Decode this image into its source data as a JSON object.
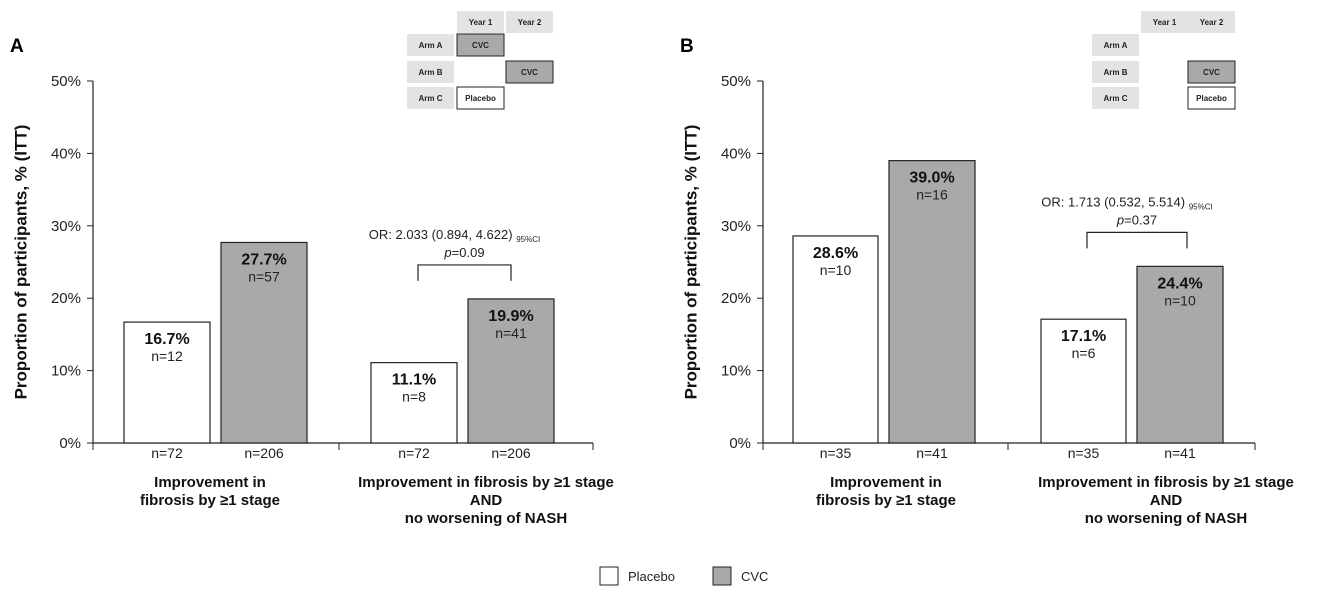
{
  "legend": [
    {
      "label": "Placebo",
      "color": "#ffffff"
    },
    {
      "label": "CVC",
      "color": "#a9a9a9"
    }
  ],
  "colors": {
    "placebo": "#ffffff",
    "cvc": "#a9a9a9",
    "axis": "#222222"
  },
  "chart_data": [
    {
      "panel_label": "A",
      "type": "bar",
      "ylabel": "Proportion of participants, % (ITT)",
      "ylim": [
        0,
        50
      ],
      "yticks": [
        "0%",
        "10%",
        "20%",
        "30%",
        "40%",
        "50%"
      ],
      "categories": [
        {
          "lines": [
            "Improvement in",
            "fibrosis by ≥1 stage"
          ]
        },
        {
          "lines": [
            "Improvement in fibrosis by ≥1 stage",
            "AND",
            "no worsening of NASH"
          ]
        }
      ],
      "series": [
        {
          "name": "Placebo",
          "values": [
            16.7,
            11.1
          ],
          "labels": [
            "16.7%",
            "11.1%"
          ],
          "n_responders": [
            "n=12",
            "n=8"
          ],
          "n_total": [
            "n=72",
            "n=72"
          ]
        },
        {
          "name": "CVC",
          "values": [
            27.7,
            19.9
          ],
          "labels": [
            "27.7%",
            "19.9%"
          ],
          "n_responders": [
            "n=57",
            "n=41"
          ],
          "n_total": [
            "n=206",
            "n=206"
          ]
        }
      ],
      "annotation": {
        "category_index": 1,
        "or_text": "OR: 2.033 (0.894, 4.622)",
        "ci_text": "95%CI",
        "p_prefix": "p",
        "p_value": "=0.09"
      },
      "design_table": {
        "headers": [
          "Year 1",
          "Year 2"
        ],
        "rows": [
          {
            "arm": "Arm A",
            "cells": [
              "CVC",
              ""
            ]
          },
          {
            "arm": "Arm B",
            "cells": [
              "",
              "CVC"
            ]
          },
          {
            "arm": "Arm C",
            "cells": [
              "Placebo",
              ""
            ]
          }
        ]
      }
    },
    {
      "panel_label": "B",
      "type": "bar",
      "ylabel": "Proportion of participants, % (ITT)",
      "ylim": [
        0,
        50
      ],
      "yticks": [
        "0%",
        "10%",
        "20%",
        "30%",
        "40%",
        "50%"
      ],
      "categories": [
        {
          "lines": [
            "Improvement in",
            "fibrosis by ≥1 stage"
          ]
        },
        {
          "lines": [
            "Improvement in fibrosis by ≥1 stage",
            "AND",
            "no worsening of NASH"
          ]
        }
      ],
      "series": [
        {
          "name": "Placebo",
          "values": [
            28.6,
            17.1
          ],
          "labels": [
            "28.6%",
            "17.1%"
          ],
          "n_responders": [
            "n=10",
            "n=6"
          ],
          "n_total": [
            "n=35",
            "n=35"
          ]
        },
        {
          "name": "CVC",
          "values": [
            39.0,
            24.4
          ],
          "labels": [
            "39.0%",
            "24.4%"
          ],
          "n_responders": [
            "n=16",
            "n=10"
          ],
          "n_total": [
            "n=41",
            "n=41"
          ]
        }
      ],
      "annotation": {
        "category_index": 1,
        "or_text": "OR: 1.713 (0.532, 5.514)",
        "ci_text": "95%CI",
        "p_prefix": "p",
        "p_value": "=0.37"
      },
      "design_table": {
        "headers": [
          "Year 1",
          "Year 2"
        ],
        "rows": [
          {
            "arm": "Arm A",
            "cells": [
              "",
              ""
            ]
          },
          {
            "arm": "Arm B",
            "cells": [
              "",
              "CVC"
            ]
          },
          {
            "arm": "Arm C",
            "cells": [
              "",
              "Placebo"
            ]
          }
        ]
      }
    }
  ]
}
